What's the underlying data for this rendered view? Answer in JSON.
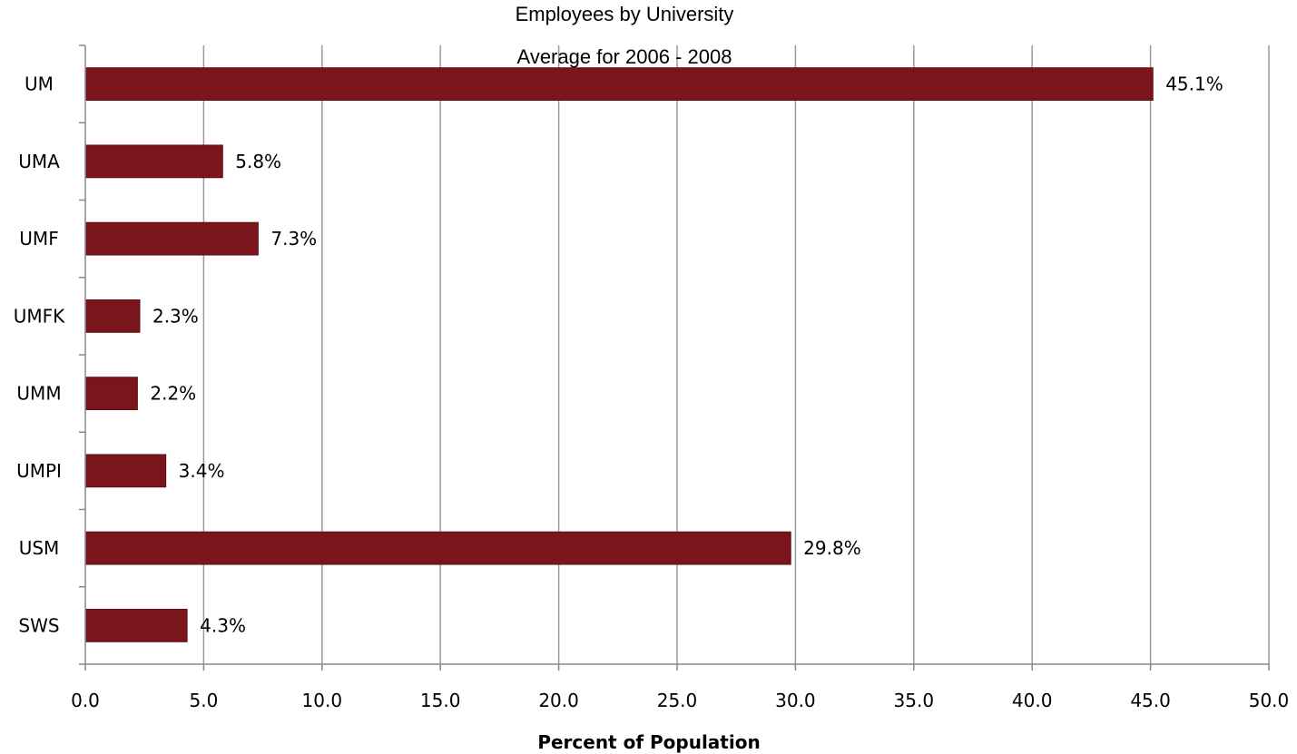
{
  "chart_data": {
    "type": "bar",
    "orientation": "horizontal",
    "title": "Employees by University",
    "subtitle": "Average  for 2006 - 2008",
    "categories": [
      "UM",
      "UMA",
      "UMF",
      "UMFK",
      "UMM",
      "UMPI",
      "USM",
      "SWS"
    ],
    "values": [
      45.1,
      5.8,
      7.3,
      2.3,
      2.2,
      3.4,
      29.8,
      4.3
    ],
    "data_labels": [
      "45.1%",
      "5.8%",
      "7.3%",
      "2.3%",
      "2.2%",
      "3.4%",
      "29.8%",
      "4.3%"
    ],
    "xlabel": "Percent of Population",
    "ylabel": "",
    "xlim": [
      0,
      50
    ],
    "xticks": [
      "0.0",
      "5.0",
      "10.0",
      "15.0",
      "20.0",
      "25.0",
      "30.0",
      "35.0",
      "40.0",
      "45.0",
      "50.0"
    ],
    "grid": "vertical",
    "legend": "none",
    "bar_color": "#7a151c",
    "grid_color": "#9a9a9a"
  }
}
